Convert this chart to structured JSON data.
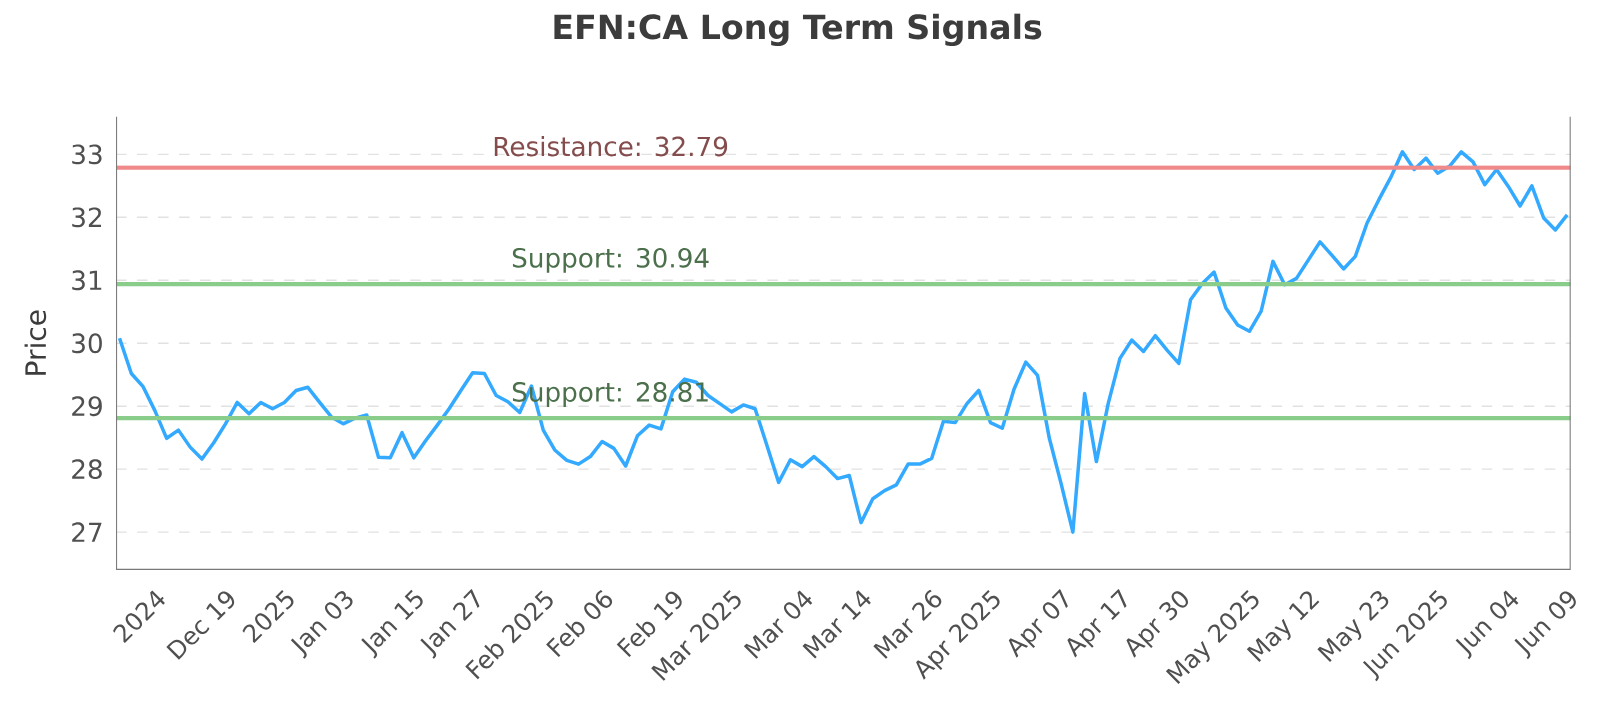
{
  "chart_data": {
    "type": "line",
    "title": "EFN:CA Long Term Signals",
    "ylabel": "Price",
    "categories": [
      null,
      null,
      null,
      "2024",
      null,
      null,
      null,
      null,
      null,
      "Dec 19",
      null,
      null,
      null,
      null,
      "2025",
      null,
      null,
      null,
      null,
      "Jan 03",
      null,
      null,
      null,
      null,
      null,
      "Jan 15",
      null,
      null,
      null,
      null,
      "Jan 27",
      null,
      null,
      null,
      null,
      null,
      "Feb 2025",
      null,
      null,
      null,
      null,
      "Feb 06",
      null,
      null,
      null,
      null,
      null,
      "Feb 19",
      null,
      null,
      null,
      null,
      "Mar 2025",
      null,
      null,
      null,
      null,
      null,
      "Mar 04",
      null,
      null,
      null,
      null,
      "Mar 14",
      null,
      null,
      null,
      null,
      null,
      "Mar 26",
      null,
      null,
      null,
      null,
      "Apr 2025",
      null,
      null,
      null,
      null,
      null,
      "Apr 07",
      null,
      null,
      null,
      null,
      "Apr 17",
      null,
      null,
      null,
      null,
      "Apr 30",
      null,
      null,
      null,
      null,
      null,
      "May 2025",
      null,
      null,
      null,
      null,
      "May 12",
      null,
      null,
      null,
      null,
      null,
      "May 23",
      null,
      null,
      null,
      null,
      "Jun 2025",
      null,
      null,
      null,
      null,
      null,
      "Jun 04",
      null,
      null,
      null,
      null,
      "Jun 09"
    ],
    "series": [
      {
        "color": "#33aaff",
        "values": [
          30.08,
          29.52,
          29.31,
          28.93,
          28.49,
          28.62,
          28.35,
          28.16,
          28.42,
          28.72,
          29.06,
          28.88,
          29.06,
          28.96,
          29.06,
          29.25,
          29.3,
          29.06,
          28.83,
          28.72,
          28.81,
          28.86,
          28.19,
          28.18,
          28.58,
          28.18,
          28.45,
          28.7,
          28.96,
          29.25,
          29.53,
          29.52,
          29.17,
          29.07,
          28.9,
          29.32,
          28.62,
          28.3,
          28.14,
          28.08,
          28.2,
          28.44,
          28.33,
          28.05,
          28.53,
          28.7,
          28.64,
          29.23,
          29.43,
          29.38,
          29.17,
          29.04,
          28.91,
          29.02,
          28.96,
          28.38,
          27.79,
          28.15,
          28.04,
          28.2,
          28.04,
          27.85,
          27.9,
          27.15,
          27.53,
          27.66,
          27.75,
          28.08,
          28.08,
          28.17,
          28.76,
          28.74,
          29.04,
          29.25,
          28.74,
          28.65,
          29.27,
          29.7,
          29.49,
          28.49,
          27.77,
          27.0,
          29.2,
          28.12,
          29.04,
          29.76,
          30.05,
          29.87,
          30.12,
          29.89,
          29.68,
          30.69,
          30.95,
          31.13,
          30.56,
          30.29,
          30.19,
          30.51,
          31.3,
          30.93,
          31.03,
          31.32,
          31.61,
          31.4,
          31.18,
          31.38,
          31.91,
          32.28,
          32.63,
          33.04,
          32.76,
          32.94,
          32.7,
          32.81,
          33.04,
          32.88,
          32.52,
          32.76,
          32.49,
          32.18,
          32.5,
          31.99,
          31.8,
          32.04
        ]
      }
    ],
    "ylim": [
      26.4,
      33.6
    ],
    "yticks": [
      27,
      28,
      29,
      30,
      31,
      32,
      33
    ],
    "grid": "y",
    "line_style": "solid",
    "marker": "none",
    "ref_lines": [
      {
        "axis": "y",
        "value": 32.79,
        "label": "Resistance: 32.79",
        "color": "#f08a8a"
      },
      {
        "axis": "y",
        "value": 30.94,
        "label": "Support: 30.94",
        "color": "#8acc8a"
      },
      {
        "axis": "y",
        "value": 28.81,
        "label": "Support: 28.81",
        "color": "#8acc8a"
      }
    ]
  }
}
